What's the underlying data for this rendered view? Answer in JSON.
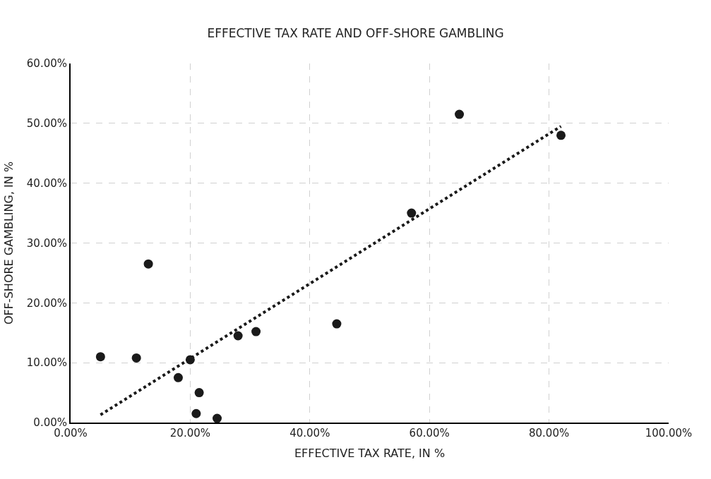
{
  "chart_data": {
    "type": "scatter",
    "title": "EFFECTIVE TAX RATE AND OFF-SHORE GAMBLING",
    "xlabel": "EFFECTIVE TAX RATE, IN %",
    "ylabel": "OFF-SHORE GAMBLING, IN %",
    "series": [
      {
        "color": "#1a1a1a",
        "marker": "circle",
        "x": [
          5,
          11,
          13,
          18,
          20,
          21.5,
          21,
          24.5,
          28,
          31,
          44.5,
          57,
          65,
          82
        ],
        "values": [
          11,
          10.8,
          26.5,
          7.5,
          10.5,
          5,
          1.5,
          0.7,
          14.5,
          15.2,
          16.5,
          35,
          51.5,
          48
        ]
      },
      {
        "type": "line",
        "color": "#1a1a1a",
        "line_style": "dotted",
        "marker": "none",
        "x": [
          5,
          82
        ],
        "values": [
          1.3,
          49.5
        ]
      }
    ],
    "xlim": [
      0,
      100
    ],
    "xticks": [
      {
        "value": 0,
        "label": "0.00%"
      },
      {
        "value": 20,
        "label": "20.00%"
      },
      {
        "value": 40,
        "label": "40.00%"
      },
      {
        "value": 60,
        "label": "60.00%"
      },
      {
        "value": 80,
        "label": "80.00%"
      },
      {
        "value": 100,
        "label": "100.00%"
      }
    ],
    "ylim": [
      0,
      60
    ],
    "yticks": [
      {
        "value": 0,
        "label": "0.00%"
      },
      {
        "value": 10,
        "label": "10.00%"
      },
      {
        "value": 20,
        "label": "20.00%"
      },
      {
        "value": 30,
        "label": "30.00%"
      },
      {
        "value": 40,
        "label": "40.00%"
      },
      {
        "value": 50,
        "label": "50.00%"
      },
      {
        "value": 60,
        "label": "60.00%"
      }
    ],
    "grid": true
  }
}
